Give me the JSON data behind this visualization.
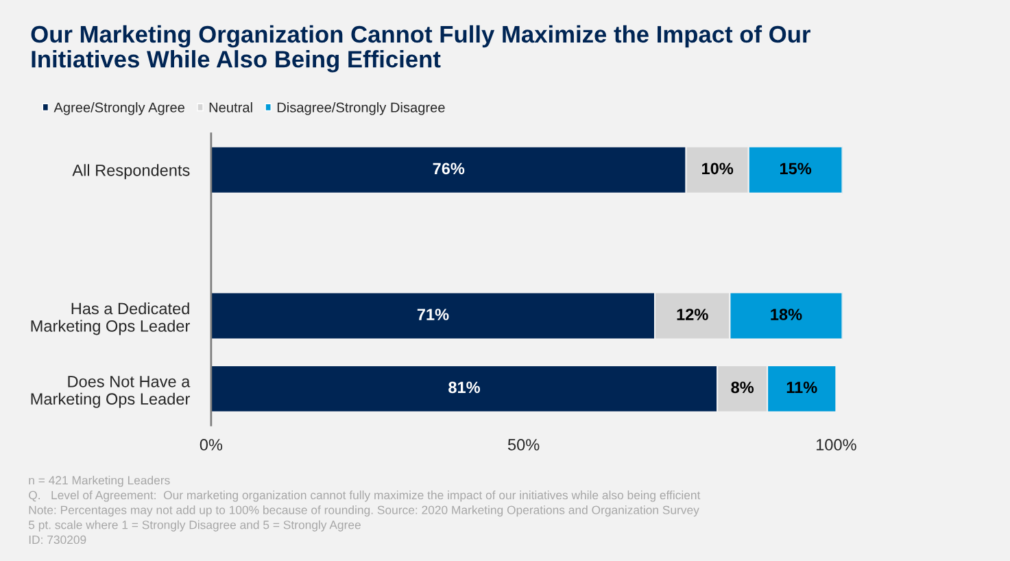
{
  "chart_data": {
    "type": "bar",
    "orientation": "horizontal",
    "stacked": true,
    "title": "Our Marketing Organization Cannot Fully Maximize the Impact of Our\nInitiatives While Also Being Efficient",
    "categories": [
      "All Respondents",
      null,
      "Has a Dedicated\nMarketing Ops Leader",
      "Does Not Have a\nMarketing Ops Leader"
    ],
    "series": [
      {
        "name": "Agree/Strongly Agree",
        "color": "#002554",
        "values": [
          76,
          null,
          71,
          81
        ],
        "value_labels": [
          "76%",
          null,
          "71%",
          "81%"
        ]
      },
      {
        "name": "Neutral",
        "color": "#d4d4d4",
        "values": [
          10,
          null,
          12,
          8
        ],
        "value_labels": [
          "10%",
          null,
          "12%",
          "8%"
        ]
      },
      {
        "name": "Disagree/Strongly Disagree",
        "color": "#009bd9",
        "values": [
          15,
          null,
          18,
          11
        ],
        "value_labels": [
          "15%",
          null,
          "18%",
          "11%"
        ]
      }
    ],
    "xlim": [
      0,
      101
    ],
    "xticks": [
      {
        "value": 0,
        "label": "0%"
      },
      {
        "value": 50,
        "label": "50%"
      },
      {
        "value": 100,
        "label": "100%"
      }
    ],
    "grid": false,
    "legend": "top left",
    "annotations": [
      "n = 421 Marketing Leaders",
      "Q.   Level of Agreement:  Our marketing organization cannot fully maximize the impact of our initiatives while also being efficient",
      "Note: Percentages may not add up to 100% because of rounding. Source: 2020 Marketing Operations and Organization Survey",
      "5 pt. scale where 1 = Strongly Disagree and 5 = Strongly Agree",
      "ID: 730209"
    ]
  }
}
